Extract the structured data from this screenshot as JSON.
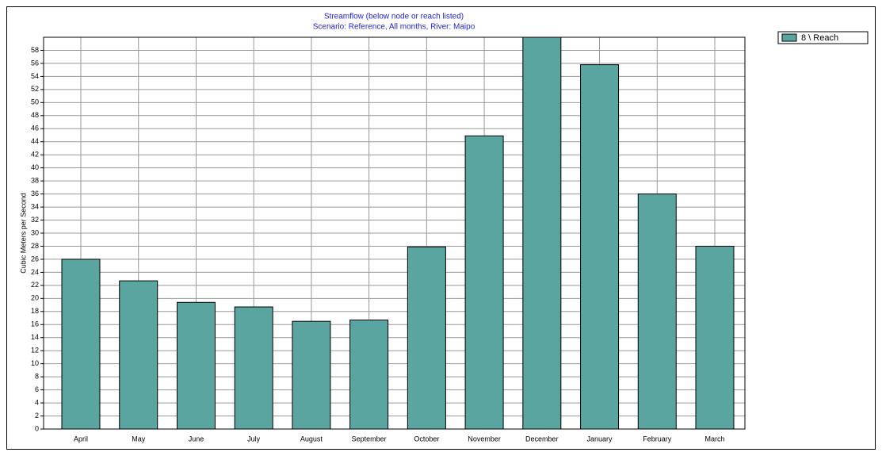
{
  "chart_data": {
    "type": "bar",
    "title": "Streamflow  (below  node or reach listed)",
    "subtitle": "Scenario: Reference,  All months,  River: Maipo",
    "y_label": "Cubic Meters per Second",
    "categories": [
      "April",
      "May",
      "June",
      "July",
      "August",
      "September",
      "October",
      "November",
      "December",
      "January",
      "February",
      "March"
    ],
    "series": [
      {
        "name": "8 \\ Reach",
        "color": "#5ba5a0",
        "values": [
          26.0,
          22.7,
          19.4,
          18.7,
          16.5,
          16.7,
          27.9,
          44.9,
          60,
          55.8,
          36.0,
          28.0
        ]
      }
    ],
    "ylim": [
      0,
      60
    ],
    "yticks": [
      0,
      2,
      4,
      6,
      8,
      10,
      12,
      14,
      16,
      18,
      20,
      22,
      24,
      26,
      28,
      30,
      32,
      34,
      36,
      38,
      40,
      42,
      44,
      46,
      48,
      50,
      52,
      54,
      56,
      58
    ],
    "grid": true,
    "legend": "top-right"
  }
}
